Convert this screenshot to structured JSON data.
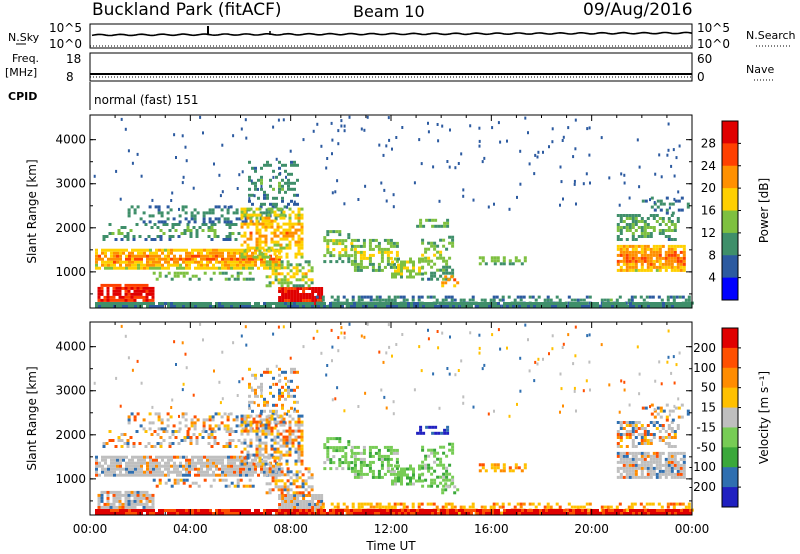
{
  "header": {
    "station": "Buckland Park (fitACF)",
    "beam": "Beam 10",
    "date": "09/Aug/2016"
  },
  "small_panels": {
    "nsky_label": "N.Sky",
    "nsky_ticks": [
      "10^5",
      "10^0"
    ],
    "nsearch_label": "N.Search",
    "nsearch_ticks": [
      "10^5",
      "10^0"
    ],
    "freq_label": "Freq.",
    "freq_unit": "[MHz]",
    "freq_ticks": [
      "18",
      "8"
    ],
    "nave_label": "Nave",
    "nave_ticks": [
      "60",
      "0"
    ],
    "cpid_label": "CPID",
    "cpid_value": "normal (fast) 151"
  },
  "chart_data": [
    {
      "type": "heatmap",
      "name": "power",
      "ylabel": "Slant Range [km]",
      "yticks": [
        "1000",
        "2000",
        "3000",
        "4000"
      ],
      "ylim": [
        180,
        4560
      ],
      "xlim": [
        0,
        24
      ],
      "colorbar": {
        "label": "Power [dB]",
        "ticks": [
          "4",
          "8",
          "12",
          "16",
          "20",
          "24",
          "28"
        ],
        "range": [
          0,
          30
        ],
        "colors": [
          "#0000ff",
          "#2c5aa0",
          "#3f8f6a",
          "#7ec040",
          "#ffd000",
          "#ff9000",
          "#ff4000",
          "#e00000"
        ]
      }
    },
    {
      "type": "heatmap",
      "name": "velocity",
      "ylabel": "Slant Range [km]",
      "yticks": [
        "1000",
        "2000",
        "3000",
        "4000"
      ],
      "ylim": [
        180,
        4560
      ],
      "xlim": [
        0,
        24
      ],
      "colorbar": {
        "label": "Velocity [m s⁻¹]",
        "ticks": [
          "200",
          "100",
          "50",
          "15",
          "-15",
          "-50",
          "-100",
          "-200"
        ],
        "colors": [
          "#2020c0",
          "#2f6fb0",
          "#3aa83a",
          "#77cc55",
          "#bfbfbf",
          "#ffc000",
          "#ff8c00",
          "#ff5000",
          "#e00000"
        ]
      }
    }
  ],
  "x_axis": {
    "label": "Time UT",
    "ticks": [
      "00:00",
      "04:00",
      "08:00",
      "12:00",
      "16:00",
      "20:00",
      "00:00"
    ],
    "xlim": [
      0,
      24
    ]
  }
}
